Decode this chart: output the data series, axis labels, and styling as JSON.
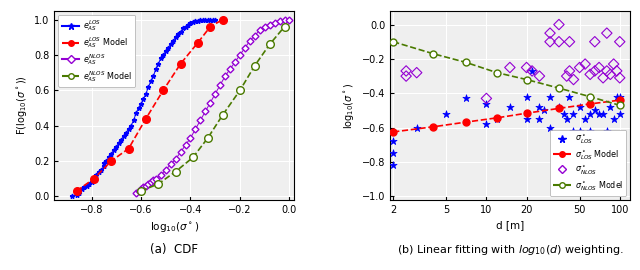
{
  "fig_width": 6.4,
  "fig_height": 2.7,
  "dpi": 100,
  "subplot_a": {
    "xlabel": "log$_{10}$($\\sigma^\\circ$)",
    "ylabel": "F(log$_{10}$($\\sigma^\\circ$))",
    "caption": "(a)  CDF",
    "xlim": [
      -0.95,
      0.02
    ],
    "ylim": [
      -0.02,
      1.05
    ],
    "xticks": [
      -0.8,
      -0.6,
      -0.4,
      -0.2,
      0.0
    ],
    "yticks": [
      0.0,
      0.2,
      0.4,
      0.6,
      0.8,
      1.0
    ],
    "los_data_x": [
      -0.88,
      -0.86,
      -0.85,
      -0.84,
      -0.83,
      -0.82,
      -0.81,
      -0.8,
      -0.79,
      -0.78,
      -0.77,
      -0.76,
      -0.75,
      -0.75,
      -0.74,
      -0.73,
      -0.72,
      -0.71,
      -0.7,
      -0.69,
      -0.68,
      -0.67,
      -0.66,
      -0.65,
      -0.64,
      -0.63,
      -0.62,
      -0.61,
      -0.6,
      -0.59,
      -0.58,
      -0.57,
      -0.56,
      -0.55,
      -0.54,
      -0.53,
      -0.52,
      -0.51,
      -0.5,
      -0.49,
      -0.48,
      -0.47,
      -0.46,
      -0.45,
      -0.44,
      -0.43,
      -0.42,
      -0.41,
      -0.4,
      -0.39,
      -0.38,
      -0.37,
      -0.36,
      -0.35,
      -0.34,
      -0.33,
      -0.32,
      -0.31,
      -0.3
    ],
    "los_data_y": [
      0.0,
      0.01,
      0.02,
      0.04,
      0.05,
      0.06,
      0.07,
      0.08,
      0.1,
      0.12,
      0.14,
      0.15,
      0.17,
      0.19,
      0.2,
      0.22,
      0.24,
      0.26,
      0.28,
      0.3,
      0.32,
      0.34,
      0.36,
      0.38,
      0.4,
      0.43,
      0.47,
      0.5,
      0.52,
      0.55,
      0.58,
      0.62,
      0.65,
      0.68,
      0.72,
      0.75,
      0.78,
      0.8,
      0.82,
      0.84,
      0.86,
      0.88,
      0.9,
      0.92,
      0.93,
      0.95,
      0.96,
      0.97,
      0.98,
      0.985,
      0.99,
      0.995,
      1.0,
      1.0,
      1.0,
      1.0,
      1.0,
      1.0,
      1.0
    ],
    "los_model_x": [
      -0.86,
      -0.79,
      -0.72,
      -0.65,
      -0.58,
      -0.51,
      -0.44,
      -0.37,
      -0.32,
      -0.27
    ],
    "los_model_y": [
      0.03,
      0.1,
      0.2,
      0.27,
      0.44,
      0.6,
      0.75,
      0.87,
      0.96,
      1.0
    ],
    "nlos_data_x": [
      -0.62,
      -0.61,
      -0.6,
      -0.59,
      -0.58,
      -0.57,
      -0.56,
      -0.55,
      -0.54,
      -0.52,
      -0.5,
      -0.48,
      -0.46,
      -0.44,
      -0.42,
      -0.4,
      -0.38,
      -0.36,
      -0.34,
      -0.32,
      -0.3,
      -0.28,
      -0.26,
      -0.24,
      -0.22,
      -0.2,
      -0.18,
      -0.16,
      -0.14,
      -0.12,
      -0.1,
      -0.08,
      -0.06,
      -0.04,
      -0.02,
      0.0
    ],
    "nlos_data_y": [
      0.02,
      0.03,
      0.04,
      0.05,
      0.06,
      0.07,
      0.08,
      0.09,
      0.1,
      0.12,
      0.15,
      0.18,
      0.21,
      0.25,
      0.29,
      0.33,
      0.38,
      0.43,
      0.48,
      0.53,
      0.58,
      0.63,
      0.68,
      0.72,
      0.76,
      0.8,
      0.84,
      0.88,
      0.91,
      0.94,
      0.96,
      0.97,
      0.98,
      0.99,
      1.0,
      1.0
    ],
    "nlos_model_x": [
      -0.6,
      -0.53,
      -0.46,
      -0.39,
      -0.33,
      -0.27,
      -0.2,
      -0.14,
      -0.08,
      -0.02
    ],
    "nlos_model_y": [
      0.03,
      0.07,
      0.14,
      0.22,
      0.33,
      0.46,
      0.6,
      0.74,
      0.86,
      0.96
    ]
  },
  "subplot_b": {
    "xlabel": "d [m]",
    "ylabel": "log$_{10}$($\\sigma^\\circ$)",
    "caption": "(b) Linear fitting with $log_{10}(d)$ weighting.",
    "xlim_log": [
      0.28,
      2.08
    ],
    "ylim": [
      -1.02,
      0.08
    ],
    "yticks": [
      -1.0,
      -0.8,
      -0.6,
      -0.4,
      -0.2,
      0.0
    ],
    "xtick_vals": [
      2,
      5,
      10,
      20,
      50,
      100
    ],
    "los_scatter_d": [
      2.0,
      2.0,
      2.0,
      3.0,
      5.0,
      7.0,
      10.0,
      10.0,
      12.0,
      15.0,
      20.0,
      20.0,
      22.0,
      25.0,
      25.0,
      27.0,
      30.0,
      30.0,
      35.0,
      38.0,
      40.0,
      42.0,
      45.0,
      45.0,
      50.0,
      50.0,
      55.0,
      60.0,
      60.0,
      65.0,
      70.0,
      75.0,
      80.0,
      85.0,
      90.0,
      95.0,
      100.0,
      100.0
    ],
    "los_scatter_y": [
      -0.68,
      -0.75,
      -0.82,
      -0.6,
      -0.52,
      -0.43,
      -0.46,
      -0.58,
      -0.55,
      -0.48,
      -0.42,
      -0.55,
      -0.27,
      -0.55,
      -0.48,
      -0.5,
      -0.6,
      -0.42,
      -0.48,
      -0.52,
      -0.55,
      -0.42,
      -0.52,
      -0.62,
      -0.48,
      -0.62,
      -0.55,
      -0.52,
      -0.62,
      -0.5,
      -0.52,
      -0.52,
      -0.62,
      -0.48,
      -0.55,
      -0.42,
      -0.42,
      -0.52
    ],
    "los_model_d": [
      2.0,
      4.0,
      7.0,
      12.0,
      20.0,
      35.0,
      60.0,
      100.0
    ],
    "los_model_y": [
      -0.625,
      -0.595,
      -0.568,
      -0.543,
      -0.516,
      -0.488,
      -0.462,
      -0.44
    ],
    "nlos_scatter_d": [
      2.5,
      2.5,
      3.0,
      10.0,
      15.0,
      20.0,
      22.0,
      25.0,
      30.0,
      30.0,
      35.0,
      35.0,
      40.0,
      42.0,
      42.0,
      45.0,
      50.0,
      55.0,
      60.0,
      65.0,
      65.0,
      70.0,
      75.0,
      80.0,
      80.0,
      85.0,
      90.0,
      95.0,
      100.0,
      100.0
    ],
    "nlos_scatter_y": [
      -0.27,
      -0.3,
      -0.28,
      -0.43,
      -0.25,
      -0.25,
      -0.27,
      -0.3,
      -0.1,
      -0.05,
      0.0,
      -0.1,
      -0.3,
      -0.27,
      -0.1,
      -0.32,
      -0.25,
      -0.23,
      -0.29,
      -0.27,
      -0.1,
      -0.25,
      -0.31,
      -0.27,
      -0.05,
      -0.29,
      -0.23,
      -0.27,
      -0.31,
      -0.1
    ],
    "nlos_model_d": [
      2.0,
      4.0,
      7.0,
      12.0,
      20.0,
      35.0,
      60.0,
      100.0
    ],
    "nlos_model_y": [
      -0.1,
      -0.17,
      -0.22,
      -0.28,
      -0.32,
      -0.37,
      -0.42,
      -0.47
    ]
  },
  "colors": {
    "blue": "#0000FF",
    "red": "#FF0000",
    "purple": "#9400D3",
    "green": "#4A7A00"
  }
}
